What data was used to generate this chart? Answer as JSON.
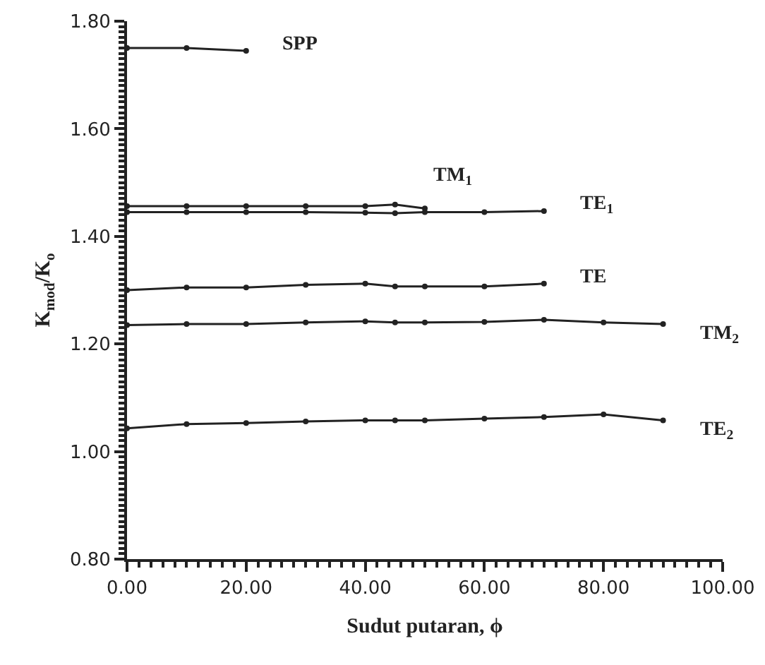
{
  "chart_data": {
    "type": "line",
    "xlabel": "Sudut putaran, ϕ",
    "ylabel": "K$_{mod}$/K$_{o}$",
    "xlim": [
      0,
      100
    ],
    "xticks": [
      {
        "value": 0,
        "label": "0.00"
      },
      {
        "value": 20,
        "label": "20.00"
      },
      {
        "value": 40,
        "label": "40.00"
      },
      {
        "value": 60,
        "label": "60.00"
      },
      {
        "value": 80,
        "label": "80.00"
      },
      {
        "value": 100,
        "label": "100.00"
      }
    ],
    "ylim": [
      0.8,
      1.8
    ],
    "yticks": [
      {
        "value": 0.8,
        "label": "0.80"
      },
      {
        "value": 1,
        "label": "1.00"
      },
      {
        "value": 1.2,
        "label": "1.20"
      },
      {
        "value": 1.4,
        "label": "1.40"
      },
      {
        "value": 1.6,
        "label": "1.60"
      },
      {
        "value": 1.8,
        "label": "1.80"
      }
    ],
    "grid": false,
    "legend": false,
    "marker": "circle",
    "line_style": "solid",
    "series": [
      {
        "name": "SPP",
        "color": "#222222",
        "x": [
          0,
          10,
          20
        ],
        "values": [
          1.75,
          1.75,
          1.745
        ]
      },
      {
        "name": "TM$_{1}$",
        "color": "#222222",
        "x": [
          0,
          10,
          20,
          30,
          40,
          45,
          50
        ],
        "values": [
          1.456,
          1.456,
          1.456,
          1.456,
          1.456,
          1.459,
          1.452
        ]
      },
      {
        "name": "TE$_{1}$",
        "color": "#222222",
        "x": [
          0,
          10,
          20,
          30,
          40,
          45,
          50,
          60,
          70
        ],
        "values": [
          1.445,
          1.445,
          1.445,
          1.445,
          1.444,
          1.443,
          1.445,
          1.445,
          1.447
        ]
      },
      {
        "name": "TE",
        "color": "#222222",
        "x": [
          0,
          10,
          20,
          30,
          40,
          45,
          50,
          60,
          70
        ],
        "values": [
          1.3,
          1.305,
          1.305,
          1.31,
          1.312,
          1.307,
          1.307,
          1.307,
          1.312
        ]
      },
      {
        "name": "TM$_{2}$",
        "color": "#222222",
        "x": [
          0,
          10,
          20,
          30,
          40,
          45,
          50,
          60,
          70,
          80,
          90
        ],
        "values": [
          1.235,
          1.237,
          1.237,
          1.24,
          1.242,
          1.24,
          1.24,
          1.241,
          1.245,
          1.24,
          1.237
        ]
      },
      {
        "name": "TE$_{2}$",
        "color": "#222222",
        "x": [
          0,
          10,
          20,
          30,
          40,
          45,
          50,
          60,
          70,
          80,
          90
        ],
        "values": [
          1.043,
          1.051,
          1.053,
          1.056,
          1.058,
          1.058,
          1.058,
          1.061,
          1.064,
          1.069,
          1.058
        ]
      }
    ]
  }
}
